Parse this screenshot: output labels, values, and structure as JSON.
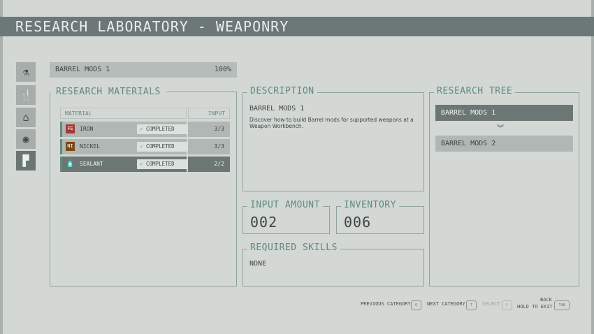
{
  "title": "RESEARCH LABORATORY - WEAPONRY",
  "sidebar": {
    "items": [
      {
        "icon": "flask-icon"
      },
      {
        "icon": "fork-spoon-icon"
      },
      {
        "icon": "outpost-icon"
      },
      {
        "icon": "helmet-icon"
      },
      {
        "icon": "pistol-icon",
        "active": true
      }
    ]
  },
  "project": {
    "name": "BARREL MODS 1",
    "progress": "100%"
  },
  "materials": {
    "title": "RESEARCH MATERIALS",
    "col_material": "MATERIAL",
    "col_input": "INPUT",
    "rows": [
      {
        "symbol": "FE",
        "symbol_color": "#a23a35",
        "name": "IRON",
        "status": "COMPLETED",
        "input": "3/3"
      },
      {
        "symbol": "NI",
        "symbol_color": "#7a4a16",
        "name": "NICKEL",
        "status": "COMPLETED",
        "input": "3/3"
      },
      {
        "symbol": "",
        "name": "SEALANT",
        "status": "COMPLETED",
        "input": "2/2"
      }
    ]
  },
  "description": {
    "title": "DESCRIPTION",
    "heading": "BARREL MODS 1",
    "text": "Discover how to build Barrel mods for supported weapons at a Weapon Workbench."
  },
  "input_amount": {
    "title": "INPUT AMOUNT",
    "value": "002"
  },
  "inventory": {
    "title": "INVENTORY",
    "value": "006"
  },
  "skills": {
    "title": "REQUIRED SKILLS",
    "value": "NONE"
  },
  "tree": {
    "title": "RESEARCH TREE",
    "items": [
      "BARREL MODS 1",
      "BARREL MODS 2"
    ]
  },
  "hints": {
    "prev": "PREVIOUS CATEGORY",
    "prev_key": "Q",
    "next": "NEXT CATEGORY",
    "next_key": "T",
    "select": "SELECT",
    "select_key": "E",
    "back": "BACK",
    "exit": "HOLD TO EXIT",
    "back_key": "TAB"
  }
}
